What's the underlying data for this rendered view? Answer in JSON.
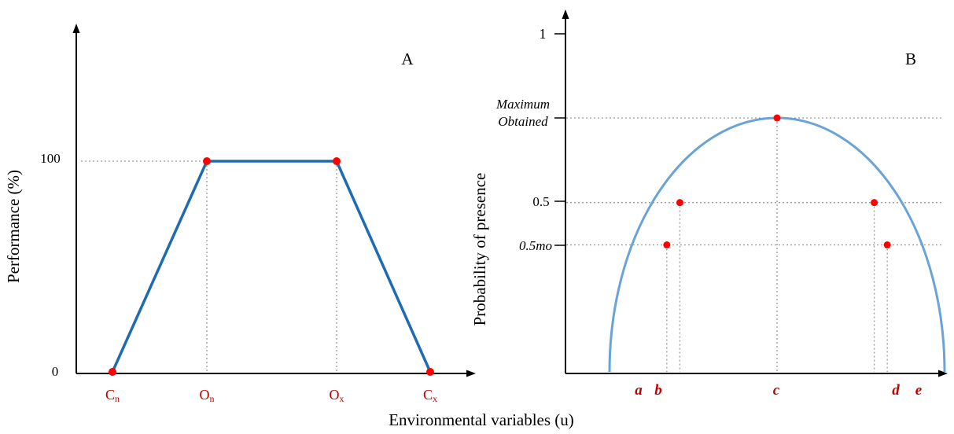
{
  "colors": {
    "axis": "#000000",
    "line_a": "#1f6bb3",
    "curve_b": "#6aa3d5",
    "point": "#ff0000",
    "red_text": "#c00000",
    "guide": "#9a9a9a"
  },
  "xlabel_shared": "Environmental variables (u)",
  "chart_data": [
    {
      "id": "A",
      "type": "line",
      "panel_label": "A",
      "title": "",
      "xlabel": "Environmental variables (u)",
      "ylabel": "Performance (%)",
      "ylim": [
        0,
        140
      ],
      "grid": false,
      "legend": "none",
      "y_ticks": [
        {
          "value": 0,
          "label": "0"
        },
        {
          "value": 100,
          "label": "100"
        }
      ],
      "x_ticks": [
        {
          "x": 0,
          "main": "C",
          "sub": "n"
        },
        {
          "x": 1,
          "main": "O",
          "sub": "n"
        },
        {
          "x": 2,
          "main": "O",
          "sub": "x"
        },
        {
          "x": 3,
          "main": "C",
          "sub": "x"
        }
      ],
      "series": [
        {
          "x": [
            0,
            1,
            2,
            3
          ],
          "y": [
            0,
            100,
            100,
            0
          ]
        }
      ],
      "guides": [
        {
          "type": "hline",
          "y": 100,
          "x_to": 1
        },
        {
          "type": "vline",
          "x": 1,
          "y_to": 100
        },
        {
          "type": "vline",
          "x": 2,
          "y_to": 100
        }
      ]
    },
    {
      "id": "B",
      "type": "line",
      "panel_label": "B",
      "title": "",
      "xlabel": "Environmental variables (u)",
      "ylabel": "Probability of presence",
      "ylim": [
        0,
        1.05
      ],
      "grid": false,
      "legend": "none",
      "y_ticks": [
        {
          "value": 1.0,
          "label": "1",
          "italic": false
        },
        {
          "value": 0.75,
          "label": "Maximum Obtained",
          "italic": true
        },
        {
          "value": 0.5,
          "label": "0.5",
          "italic": false
        },
        {
          "value": 0.375,
          "label": "0.5mo",
          "italic": true
        }
      ],
      "x_ticks": [
        {
          "x": 0.171,
          "label": "a"
        },
        {
          "x": 0.21,
          "label": "b"
        },
        {
          "x": 0.5,
          "label": "c"
        },
        {
          "x": 0.79,
          "label": "d"
        },
        {
          "x": 0.829,
          "label": "e"
        }
      ],
      "series": [
        {
          "x": [
            0.5
          ],
          "y": [
            0.75
          ],
          "shape": "semi-ellipse",
          "x_min": 0.0,
          "x_max": 1.0,
          "peak": 0.75
        }
      ],
      "points": [
        {
          "x": 0.171,
          "y": 0.375
        },
        {
          "x": 0.21,
          "y": 0.5
        },
        {
          "x": 0.5,
          "y": 0.75
        },
        {
          "x": 0.79,
          "y": 0.5
        },
        {
          "x": 0.829,
          "y": 0.375
        }
      ]
    }
  ]
}
